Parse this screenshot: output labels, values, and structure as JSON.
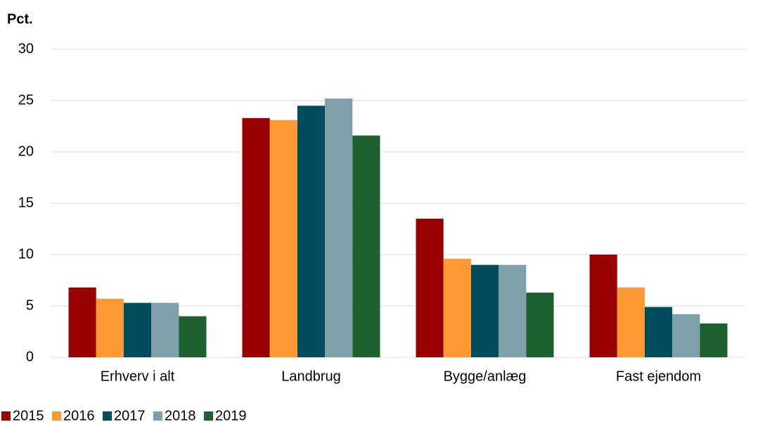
{
  "chart_data": {
    "type": "bar",
    "y_label": "Pct.",
    "categories": [
      "Erhverv i alt",
      "Landbrug",
      "Bygge/anlæg",
      "Fast ejendom"
    ],
    "series": [
      {
        "name": "2015",
        "color": "#990000",
        "values": [
          6.8,
          23.3,
          13.5,
          10.0
        ]
      },
      {
        "name": "2016",
        "color": "#ff9933",
        "values": [
          5.7,
          23.1,
          9.6,
          6.8
        ]
      },
      {
        "name": "2017",
        "color": "#004c5c",
        "values": [
          5.3,
          24.5,
          9.0,
          4.9
        ]
      },
      {
        "name": "2018",
        "color": "#7f9fa9",
        "values": [
          5.3,
          25.2,
          9.0,
          4.2
        ]
      },
      {
        "name": "2019",
        "color": "#1e6030",
        "values": [
          4.0,
          21.6,
          6.3,
          3.3
        ]
      }
    ],
    "ylim": [
      0,
      30
    ],
    "yticks": [
      0,
      5,
      10,
      15,
      20,
      25,
      30
    ],
    "grid": true,
    "legend": "bottom"
  }
}
